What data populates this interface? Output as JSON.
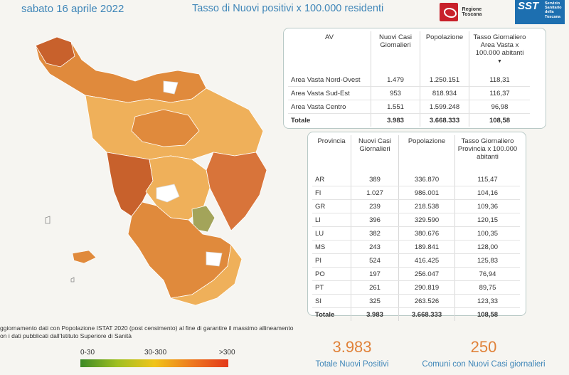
{
  "header": {
    "date": "sabato 16 aprile 2022",
    "title": "Tasso di Nuovi positivi x 100.000 residenti",
    "logo_regione": "Regione Toscana",
    "logo_sst": "SST",
    "logo_sst_sub": "Servizio Sanitario della Toscana"
  },
  "av_table": {
    "headers": [
      "AV",
      "Nuovi Casi Giornalieri",
      "Popolazione",
      "Tasso Giornaliero Area Vasta x 100.000 abitanti"
    ],
    "rows": [
      [
        "Area Vasta Nord-Ovest",
        "1.479",
        "1.250.151",
        "118,31"
      ],
      [
        "Area Vasta Sud-Est",
        "953",
        "818.934",
        "116,37"
      ],
      [
        "Area Vasta Centro",
        "1.551",
        "1.599.248",
        "96,98"
      ]
    ],
    "total": [
      "Totale",
      "3.983",
      "3.668.333",
      "108,58"
    ]
  },
  "prov_table": {
    "headers": [
      "Provincia",
      "Nuovi Casi Giornalieri",
      "Popolazione",
      "Tasso Giornaliero Provincia x 100.000 abitanti"
    ],
    "rows": [
      [
        "AR",
        "389",
        "336.870",
        "115,47"
      ],
      [
        "FI",
        "1.027",
        "986.001",
        "104,16"
      ],
      [
        "GR",
        "239",
        "218.538",
        "109,36"
      ],
      [
        "LI",
        "396",
        "329.590",
        "120,15"
      ],
      [
        "LU",
        "382",
        "380.676",
        "100,35"
      ],
      [
        "MS",
        "243",
        "189.841",
        "128,00"
      ],
      [
        "PI",
        "524",
        "416.425",
        "125,83"
      ],
      [
        "PO",
        "197",
        "256.047",
        "76,94"
      ],
      [
        "PT",
        "261",
        "290.819",
        "89,75"
      ],
      [
        "SI",
        "325",
        "263.526",
        "123,33"
      ]
    ],
    "total": [
      "Totale",
      "3.983",
      "3.668.333",
      "108,58"
    ]
  },
  "note": {
    "line1": "ggiornamento dati con Popolazione ISTAT 2020 (post censimento) al fine di garantire il massimo allineamento",
    "line2": "on i dati pubblicati dall'Istituto Superiore di Sanità"
  },
  "legend": {
    "low": "0-30",
    "mid": "30-300",
    "high": ">300"
  },
  "kpi": {
    "total_value": "3.983",
    "total_label": "Totale Nuovi Positivi",
    "comuni_value": "250",
    "comuni_label": "Comuni con Nuovi Casi giornalieri"
  },
  "colors": {
    "accent": "#3f86b8",
    "kpi": "#e0823a",
    "map_dark": "#c8612c",
    "map_mid": "#e08a3c",
    "map_light": "#efb05a"
  }
}
